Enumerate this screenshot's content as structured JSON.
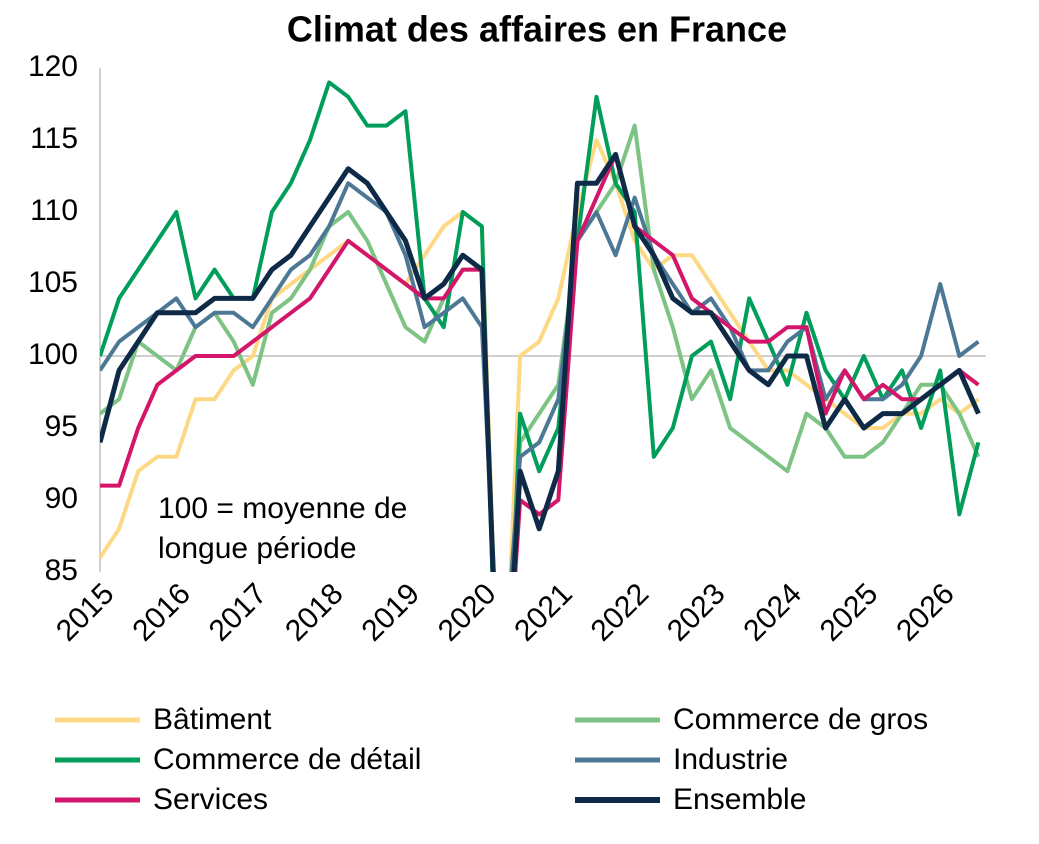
{
  "chart_data": {
    "type": "line",
    "title": "Climat des affaires en France",
    "annotation": [
      "100 = moyenne de",
      "longue période"
    ],
    "x": [
      2015,
      2015.25,
      2015.5,
      2015.75,
      2016,
      2016.25,
      2016.5,
      2016.75,
      2017,
      2017.25,
      2017.5,
      2017.75,
      2018,
      2018.25,
      2018.5,
      2018.75,
      2019,
      2019.25,
      2019.5,
      2019.75,
      2020,
      2020.25,
      2020.5,
      2020.75,
      2021,
      2021.25,
      2021.5,
      2021.75,
      2022,
      2022.25,
      2022.5,
      2022.75,
      2023,
      2023.25,
      2023.5,
      2023.75,
      2024,
      2024.25,
      2024.5,
      2024.75,
      2025,
      2025.25,
      2025.5,
      2025.75,
      2026,
      2026.25,
      2026.5
    ],
    "series": [
      {
        "name": "Bâtiment",
        "color": "#fdd885",
        "values": [
          86,
          88,
          92,
          93,
          93,
          97,
          97,
          99,
          100,
          104,
          105,
          106,
          107,
          108,
          107,
          106,
          105,
          107,
          109,
          110,
          109,
          70,
          100,
          101,
          104,
          110,
          115,
          112,
          108,
          106,
          107,
          107,
          105,
          103,
          101,
          99,
          99,
          98,
          97,
          96,
          95,
          95,
          96,
          96,
          97,
          96,
          97
        ]
      },
      {
        "name": "Commerce de gros",
        "color": "#7dc383",
        "values": [
          96,
          97,
          101,
          100,
          99,
          102,
          103,
          101,
          98,
          103,
          104,
          106,
          109,
          110,
          108,
          105,
          102,
          101,
          104,
          106,
          106,
          72,
          94,
          96,
          98,
          108,
          110,
          112,
          116,
          106,
          102,
          97,
          99,
          95,
          94,
          93,
          92,
          96,
          95,
          93,
          93,
          94,
          96,
          98,
          98,
          96,
          93
        ]
      },
      {
        "name": "Commerce de détail",
        "color": "#009e5a",
        "values": [
          100,
          104,
          106,
          108,
          110,
          104,
          106,
          104,
          104,
          110,
          112,
          115,
          119,
          118,
          116,
          116,
          117,
          104,
          102,
          110,
          109,
          65,
          96,
          92,
          95,
          108,
          118,
          112,
          110,
          93,
          95,
          100,
          101,
          97,
          104,
          101,
          98,
          103,
          99,
          97,
          100,
          97,
          99,
          95,
          99,
          89,
          94
        ]
      },
      {
        "name": "Industrie",
        "color": "#4d7895",
        "values": [
          99,
          101,
          102,
          103,
          104,
          102,
          103,
          103,
          102,
          104,
          106,
          107,
          109,
          112,
          111,
          110,
          107,
          102,
          103,
          104,
          102,
          75,
          93,
          94,
          97,
          108,
          110,
          107,
          111,
          107,
          105,
          103,
          104,
          102,
          99,
          99,
          101,
          102,
          97,
          99,
          97,
          97,
          98,
          100,
          105,
          100,
          101
        ]
      },
      {
        "name": "Services",
        "color": "#d3166a",
        "values": [
          91,
          91,
          95,
          98,
          99,
          100,
          100,
          100,
          101,
          102,
          103,
          104,
          106,
          108,
          107,
          106,
          105,
          104,
          104,
          106,
          106,
          70,
          90,
          89,
          90,
          108,
          111,
          114,
          109,
          108,
          107,
          104,
          103,
          102,
          101,
          101,
          102,
          102,
          96,
          99,
          97,
          98,
          97,
          97,
          98,
          99,
          98
        ]
      },
      {
        "name": "Ensemble",
        "color": "#0e2a47",
        "values": [
          94,
          99,
          101,
          103,
          103,
          103,
          104,
          104,
          104,
          106,
          107,
          109,
          111,
          113,
          112,
          110,
          108,
          104,
          105,
          107,
          106,
          70,
          92,
          88,
          92,
          112,
          112,
          114,
          109,
          107,
          104,
          103,
          103,
          101,
          99,
          98,
          100,
          100,
          95,
          97,
          95,
          96,
          96,
          97,
          98,
          99,
          96
        ]
      }
    ],
    "xlim": [
      2015,
      2026.6
    ],
    "xticks": [
      2015,
      2016,
      2017,
      2018,
      2019,
      2020,
      2021,
      2022,
      2023,
      2024,
      2025,
      2026
    ],
    "ylim": [
      85,
      120
    ],
    "yticks": [
      85,
      90,
      95,
      100,
      105,
      110,
      115,
      120
    ],
    "reference_line": 100
  }
}
